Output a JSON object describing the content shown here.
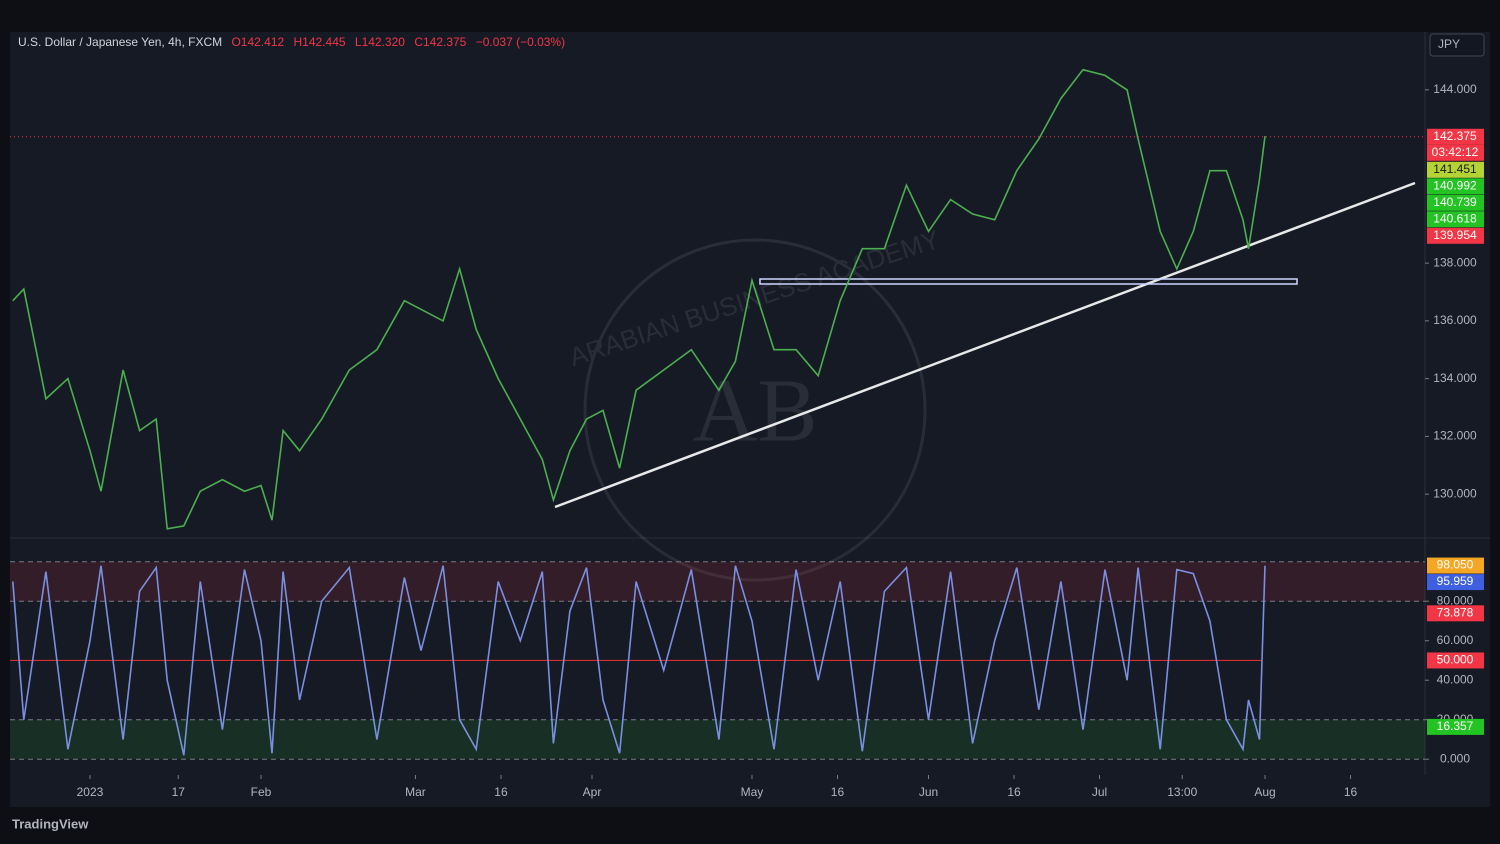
{
  "header": {
    "symbol": "U.S. Dollar / Japanese Yen, 4h, FXCM",
    "open": "O142.412",
    "high": "H142.445",
    "low": "L142.320",
    "close": "C142.375",
    "change": "−0.037 (−0.03%)"
  },
  "currency_button": "JPY",
  "brand": "TradingView",
  "watermark": {
    "initials": "AB",
    "name": "ARABIAN BUSINESS ACADEMY"
  },
  "chart_data": [
    {
      "type": "line",
      "title": "U.S. Dollar / Japanese Yen, 4h",
      "x": [
        -14,
        -12,
        -8,
        -4,
        0,
        2,
        6,
        9,
        12,
        14,
        17,
        20,
        24,
        28,
        31,
        33,
        35,
        38,
        42,
        47,
        52,
        57,
        60,
        64,
        67,
        70,
        74,
        78,
        82,
        84,
        87,
        90,
        93,
        96,
        99,
        104,
        109,
        114,
        117,
        120,
        124,
        128,
        132,
        136,
        140,
        144,
        148,
        152,
        156,
        160,
        164,
        168,
        172,
        176,
        180,
        184,
        188,
        190,
        194,
        197,
        200,
        203,
        206,
        209,
        210,
        212,
        213
      ],
      "series": [
        {
          "name": "USDJPY",
          "color": "#4caf50",
          "values": [
            136.7,
            137.1,
            133.3,
            134.0,
            131.5,
            130.1,
            134.3,
            132.2,
            132.6,
            128.8,
            128.9,
            130.1,
            130.5,
            130.1,
            130.3,
            129.1,
            132.2,
            131.5,
            132.6,
            134.3,
            135.0,
            136.7,
            136.4,
            136.0,
            137.8,
            135.7,
            134.0,
            132.6,
            131.2,
            129.8,
            131.5,
            132.6,
            132.9,
            130.9,
            133.6,
            134.3,
            135.0,
            133.6,
            134.6,
            137.4,
            135.0,
            135.0,
            134.1,
            136.7,
            138.5,
            138.5,
            140.7,
            139.1,
            140.2,
            139.7,
            139.5,
            141.2,
            142.3,
            143.7,
            144.7,
            144.5,
            144.0,
            142.3,
            139.1,
            137.8,
            139.1,
            141.2,
            141.2,
            139.5,
            138.5,
            140.9,
            142.4
          ]
        }
      ],
      "xlim": [
        -14.5,
        242
      ],
      "xticks": [
        {
          "value": 0,
          "label": "2023"
        },
        {
          "value": 16,
          "label": "17"
        },
        {
          "value": 31,
          "label": "Feb"
        },
        {
          "value": 59,
          "label": "Mar"
        },
        {
          "value": 74.5,
          "label": "16"
        },
        {
          "value": 91,
          "label": "Apr"
        },
        {
          "value": 120,
          "label": "May"
        },
        {
          "value": 135.5,
          "label": "16"
        },
        {
          "value": 152,
          "label": "Jun"
        },
        {
          "value": 167.5,
          "label": "16"
        },
        {
          "value": 183,
          "label": "Jul"
        },
        {
          "value": 198,
          "label": "13:00"
        },
        {
          "value": 213,
          "label": "Aug"
        },
        {
          "value": 228.5,
          "label": "16"
        }
      ],
      "ylim": [
        128.55,
        145.9
      ],
      "yticks": [
        {
          "value": 130,
          "label": "130.000"
        },
        {
          "value": 132,
          "label": "132.000"
        },
        {
          "value": 134,
          "label": "134.000"
        },
        {
          "value": 136,
          "label": "136.000"
        },
        {
          "value": 138,
          "label": "138.000"
        },
        {
          "value": 144,
          "label": "144.000"
        }
      ],
      "countdown": "03:42:12",
      "price_labels": [
        {
          "value": 142.375,
          "label": "142.375",
          "color": "#f23645"
        },
        {
          "value": 141.451,
          "label": "141.451",
          "color": "#b5d334"
        },
        {
          "value": 140.992,
          "label": "140.992",
          "color": "#22c322"
        },
        {
          "value": 140.739,
          "label": "140.739",
          "color": "#22c322"
        },
        {
          "value": 140.618,
          "label": "140.618",
          "color": "#22c322"
        },
        {
          "value": 139.954,
          "label": "139.954",
          "color": "#f23645"
        }
      ]
    },
    {
      "type": "line",
      "title": "Stochastic RSI",
      "x": [
        -14,
        -12,
        -8,
        -4,
        0,
        2,
        6,
        9,
        12,
        14,
        17,
        20,
        24,
        28,
        31,
        33,
        35,
        38,
        42,
        47,
        52,
        57,
        60,
        64,
        67,
        70,
        74,
        78,
        82,
        84,
        87,
        90,
        93,
        96,
        99,
        104,
        109,
        114,
        117,
        120,
        124,
        128,
        132,
        136,
        140,
        144,
        148,
        152,
        156,
        160,
        164,
        168,
        172,
        176,
        180,
        184,
        188,
        190,
        194,
        197,
        200,
        203,
        206,
        209,
        210,
        212,
        213
      ],
      "series": [
        {
          "name": "K",
          "color": "#7b8fe0",
          "values": [
            90,
            20,
            95,
            5,
            60,
            98,
            10,
            85,
            97,
            40,
            2,
            90,
            15,
            96,
            60,
            3,
            95,
            30,
            80,
            97,
            10,
            92,
            55,
            98,
            20,
            5,
            90,
            60,
            95,
            8,
            75,
            97,
            30,
            3,
            90,
            45,
            96,
            10,
            98,
            70,
            5,
            96,
            40,
            90,
            4,
            85,
            97,
            20,
            95,
            8,
            60,
            97,
            25,
            90,
            15,
            96,
            40,
            97,
            5,
            96,
            94,
            70,
            20,
            5,
            30,
            10,
            98
          ]
        }
      ],
      "ylim": [
        -8,
        111
      ],
      "yticks": [
        {
          "value": 0,
          "label": "0.000"
        },
        {
          "value": 20,
          "label": "20.000"
        },
        {
          "value": 40,
          "label": "40.000"
        },
        {
          "value": 60,
          "label": "60.000"
        },
        {
          "value": 80,
          "label": "80.000"
        }
      ],
      "upper_band": [
        80,
        100
      ],
      "lower_band": [
        0,
        20
      ],
      "midline": 50,
      "price_labels": [
        {
          "value": 98.05,
          "label": "98.050",
          "color": "#f5a623"
        },
        {
          "value": 95.959,
          "label": "95.959",
          "color": "#3d5fe0"
        },
        {
          "value": 73.878,
          "label": "73.878",
          "color": "#f23645"
        },
        {
          "value": 50,
          "label": "50.000",
          "color": "#f23645"
        },
        {
          "value": 16.357,
          "label": "16.357",
          "color": "#22c322"
        }
      ]
    }
  ]
}
